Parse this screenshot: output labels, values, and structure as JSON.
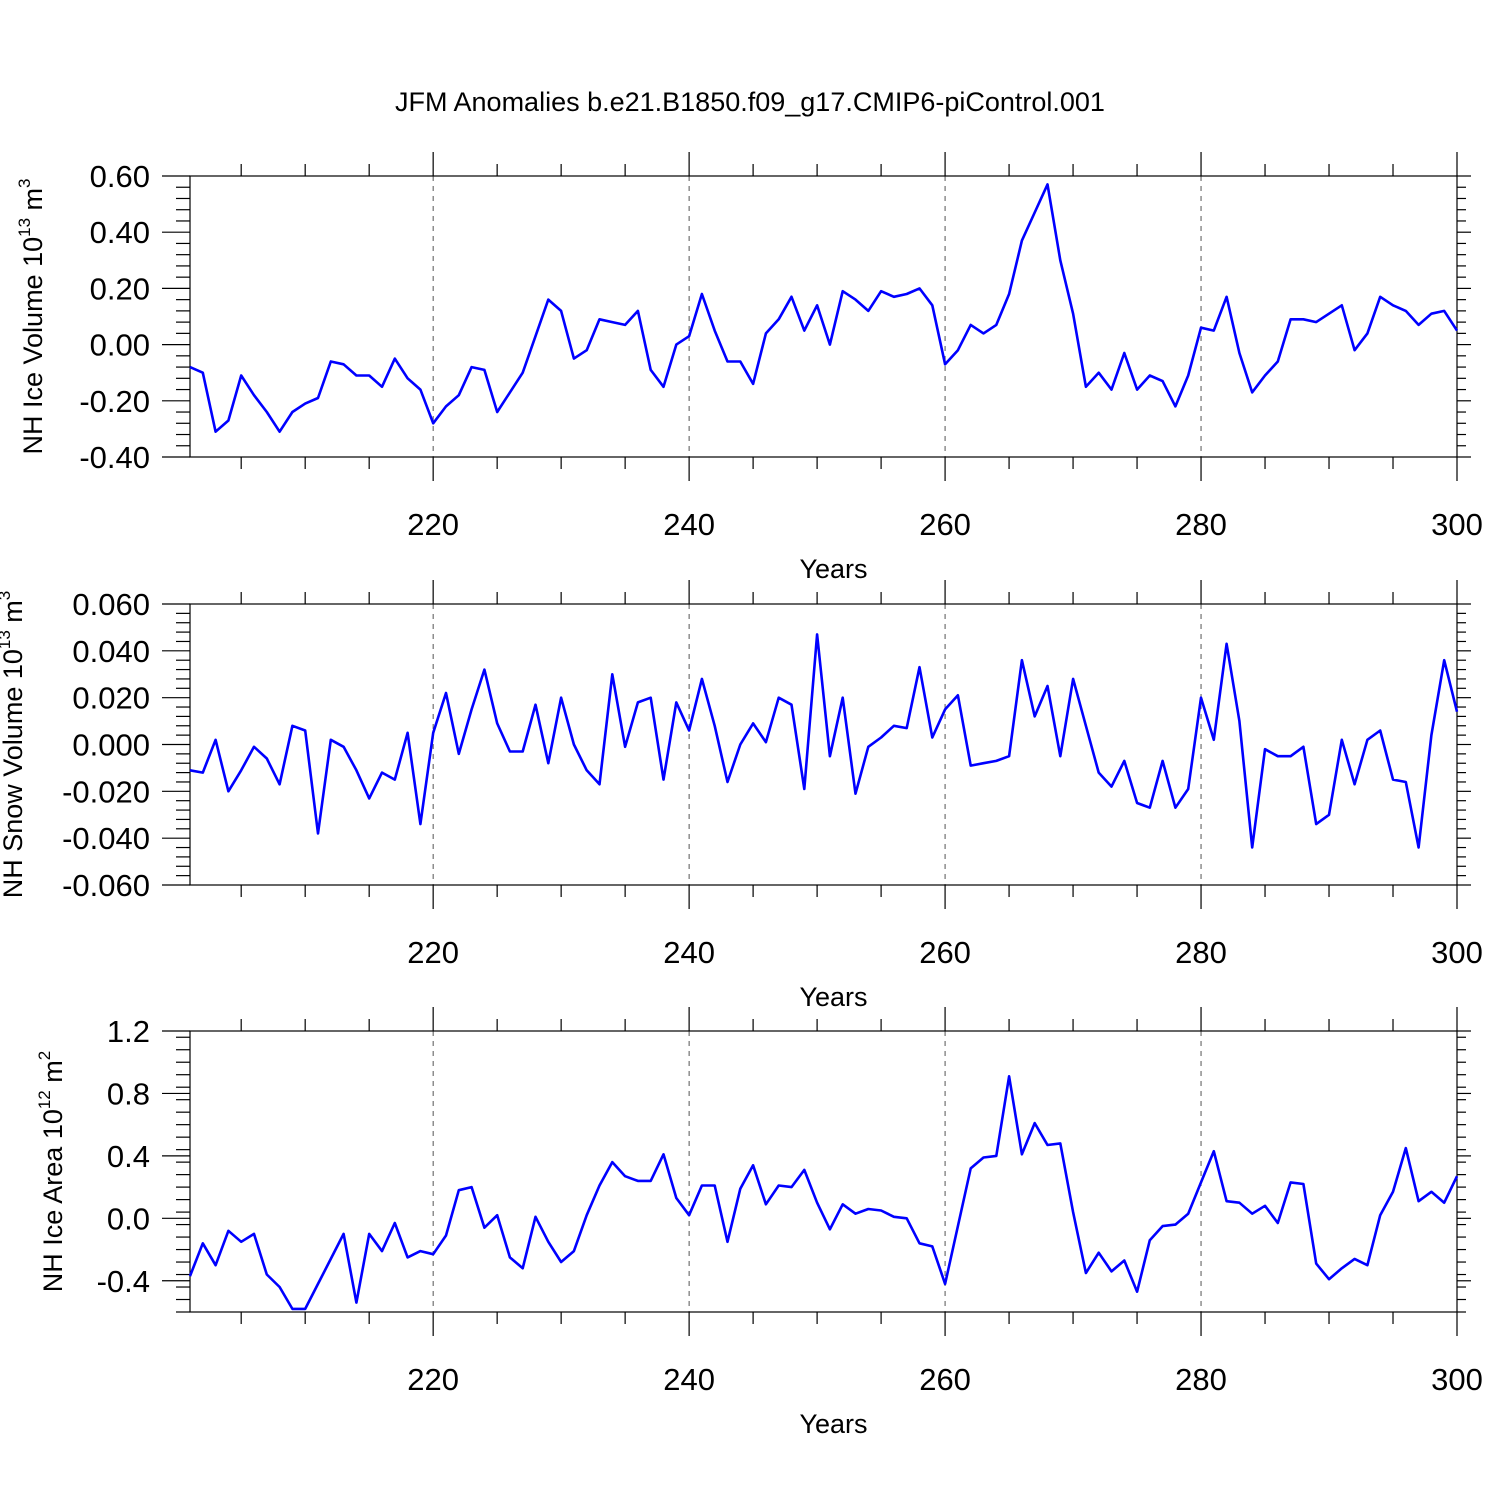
{
  "figure": {
    "title": "JFM Anomalies b.e21.B1850.f09_g17.CMIP6-piControl.001"
  },
  "chart_data": [
    {
      "type": "line",
      "name": "panel-ice-volume",
      "ylabel_main": "NH Ice Volume 10",
      "ylabel_exp": "13",
      "ylabel_unit": " m",
      "ylabel_unit_exp": "3",
      "xlabel": "Years",
      "xlim": [
        201,
        300
      ],
      "ylim": [
        -0.4,
        0.6
      ],
      "xticks": [
        220,
        240,
        260,
        280,
        300
      ],
      "xtick_labels": [
        "220",
        "240",
        "260",
        "280",
        "300"
      ],
      "yticks": [
        -0.4,
        -0.2,
        0.0,
        0.2,
        0.4,
        0.6
      ],
      "ytick_labels": [
        "-0.40",
        "-0.20",
        "0.00",
        "0.20",
        "0.40",
        "0.60"
      ],
      "grid": "vertical dashed at major x ticks",
      "series": [
        {
          "name": "NH Ice Volume anomaly",
          "color": "#0000ff",
          "x_start": 201,
          "x_step": 1,
          "values": [
            -0.08,
            -0.1,
            -0.31,
            -0.27,
            -0.11,
            -0.18,
            -0.24,
            -0.31,
            -0.24,
            -0.21,
            -0.19,
            -0.06,
            -0.07,
            -0.11,
            -0.11,
            -0.15,
            -0.05,
            -0.12,
            -0.16,
            -0.28,
            -0.22,
            -0.18,
            -0.08,
            -0.09,
            -0.24,
            -0.17,
            -0.1,
            0.03,
            0.16,
            0.12,
            -0.05,
            -0.02,
            0.09,
            0.08,
            0.07,
            0.12,
            -0.09,
            -0.15,
            0.0,
            0.03,
            0.18,
            0.05,
            -0.06,
            -0.06,
            -0.14,
            0.04,
            0.09,
            0.17,
            0.05,
            0.14,
            0.0,
            0.19,
            0.16,
            0.12,
            0.19,
            0.17,
            0.18,
            0.2,
            0.14,
            -0.07,
            -0.02,
            0.07,
            0.04,
            0.07,
            0.18,
            0.37,
            0.47,
            0.57,
            0.3,
            0.11,
            -0.15,
            -0.1,
            -0.16,
            -0.03,
            -0.16,
            -0.11,
            -0.13,
            -0.22,
            -0.11,
            0.06,
            0.05,
            0.17,
            -0.03,
            -0.17,
            -0.11,
            -0.06,
            0.09,
            0.09,
            0.08,
            0.11,
            0.14,
            -0.02,
            0.04,
            0.17,
            0.14,
            0.12,
            0.07,
            0.11,
            0.12,
            0.05
          ]
        }
      ]
    },
    {
      "type": "line",
      "name": "panel-snow-volume",
      "ylabel_main": "NH Snow Volume 10",
      "ylabel_exp": "13",
      "ylabel_unit": " m",
      "ylabel_unit_exp": "3",
      "xlabel": "Years",
      "xlim": [
        201,
        300
      ],
      "ylim": [
        -0.06,
        0.06
      ],
      "xticks": [
        220,
        240,
        260,
        280,
        300
      ],
      "xtick_labels": [
        "220",
        "240",
        "260",
        "280",
        "300"
      ],
      "yticks": [
        -0.06,
        -0.04,
        -0.02,
        0.0,
        0.02,
        0.04,
        0.06
      ],
      "ytick_labels": [
        "-0.060",
        "-0.040",
        "-0.020",
        "0.000",
        "0.020",
        "0.040",
        "0.060"
      ],
      "grid": "vertical dashed at major x ticks",
      "series": [
        {
          "name": "NH Snow Volume anomaly",
          "color": "#0000ff",
          "x_start": 201,
          "x_step": 1,
          "values": [
            -0.011,
            -0.012,
            0.002,
            -0.02,
            -0.011,
            -0.001,
            -0.006,
            -0.017,
            0.008,
            0.006,
            -0.038,
            0.002,
            -0.001,
            -0.011,
            -0.023,
            -0.012,
            -0.015,
            0.005,
            -0.034,
            0.005,
            0.022,
            -0.004,
            0.015,
            0.032,
            0.009,
            -0.003,
            -0.003,
            0.017,
            -0.008,
            0.02,
            0.0,
            -0.011,
            -0.017,
            0.03,
            -0.001,
            0.018,
            0.02,
            -0.015,
            0.018,
            0.006,
            0.028,
            0.008,
            -0.016,
            0.0,
            0.009,
            0.001,
            0.02,
            0.017,
            -0.019,
            0.047,
            -0.005,
            0.02,
            -0.021,
            -0.001,
            0.003,
            0.008,
            0.007,
            0.033,
            0.003,
            0.015,
            0.021,
            -0.009,
            -0.008,
            -0.007,
            -0.005,
            0.036,
            0.012,
            0.025,
            -0.005,
            0.028,
            0.008,
            -0.012,
            -0.018,
            -0.007,
            -0.025,
            -0.027,
            -0.007,
            -0.027,
            -0.019,
            0.02,
            0.002,
            0.043,
            0.01,
            -0.044,
            -0.002,
            -0.005,
            -0.005,
            -0.001,
            -0.034,
            -0.03,
            0.002,
            -0.017,
            0.002,
            0.006,
            -0.015,
            -0.016,
            -0.044,
            0.004,
            0.036,
            0.014
          ]
        }
      ]
    },
    {
      "type": "line",
      "name": "panel-ice-area",
      "ylabel_main": "NH Ice Area 10",
      "ylabel_exp": "12",
      "ylabel_unit": " m",
      "ylabel_unit_exp": "2",
      "xlabel": "Years",
      "xlim": [
        201,
        300
      ],
      "ylim": [
        -0.6,
        1.2
      ],
      "xticks": [
        220,
        240,
        260,
        280,
        300
      ],
      "xtick_labels": [
        "220",
        "240",
        "260",
        "280",
        "300"
      ],
      "yticks": [
        -0.4,
        0.0,
        0.4,
        0.8,
        1.2
      ],
      "ytick_labels": [
        "-0.4",
        "0.0",
        "0.4",
        "0.8",
        "1.2"
      ],
      "grid": "vertical dashed at major x ticks",
      "series": [
        {
          "name": "NH Ice Area anomaly",
          "color": "#0000ff",
          "x_start": 201,
          "x_step": 1,
          "values": [
            -0.37,
            -0.16,
            -0.3,
            -0.08,
            -0.15,
            -0.1,
            -0.36,
            -0.44,
            -0.58,
            -0.58,
            -0.42,
            -0.26,
            -0.1,
            -0.54,
            -0.1,
            -0.21,
            -0.03,
            -0.25,
            -0.21,
            -0.23,
            -0.11,
            0.18,
            0.2,
            -0.06,
            0.02,
            -0.25,
            -0.32,
            0.01,
            -0.15,
            -0.28,
            -0.21,
            0.02,
            0.21,
            0.36,
            0.27,
            0.24,
            0.24,
            0.41,
            0.13,
            0.02,
            0.21,
            0.21,
            -0.15,
            0.19,
            0.34,
            0.09,
            0.21,
            0.2,
            0.31,
            0.1,
            -0.07,
            0.09,
            0.03,
            0.06,
            0.05,
            0.01,
            0.0,
            -0.16,
            -0.18,
            -0.42,
            -0.05,
            0.32,
            0.39,
            0.4,
            0.91,
            0.41,
            0.61,
            0.47,
            0.48,
            0.04,
            -0.35,
            -0.22,
            -0.34,
            -0.27,
            -0.47,
            -0.14,
            -0.05,
            -0.04,
            0.03,
            0.23,
            0.43,
            0.11,
            0.1,
            0.03,
            0.08,
            -0.03,
            0.23,
            0.22,
            -0.29,
            -0.39,
            -0.32,
            -0.26,
            -0.3,
            0.02,
            0.17,
            0.45,
            0.11,
            0.17,
            0.1,
            0.27
          ]
        }
      ]
    }
  ]
}
